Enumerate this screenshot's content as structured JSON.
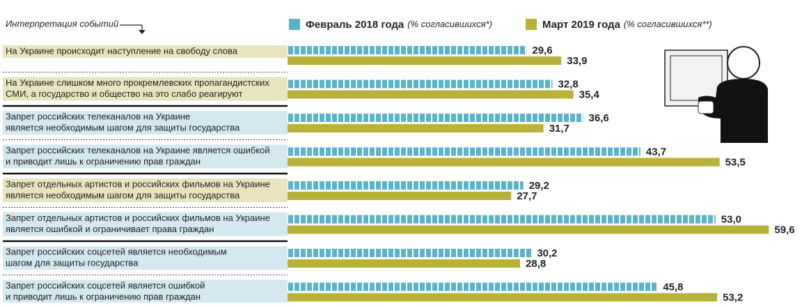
{
  "chart_data": {
    "type": "hbar",
    "header_label": "Интерпретация событий",
    "categories": [
      [
        "На Украине происходит наступление на свободу слова"
      ],
      [
        "На Украине слишком много прокремлевских пропагандистских",
        "СМИ, а государство и общество на это слабо реагируют"
      ],
      [
        "Запрет российских телеканалов на Украине",
        "является необходимым шагом для защиты государства"
      ],
      [
        "Запрет российских телеканалов на Украине является ошибкой",
        "и приводит лишь к ограничению прав граждан"
      ],
      [
        "Запрет отдельных артистов и российских фильмов на Украине",
        "является необходимым шагом для защиты государства"
      ],
      [
        "Запрет отдельных артистов и российских фильмов на Украине",
        "является ошибкой и ограничивает права граждан"
      ],
      [
        "Запрет российских соцсетей является необходимым",
        "шагом для защиты государства"
      ],
      [
        "Запрет российских соцсетей является ошибкой",
        "и приводит лишь к ограничению прав граждан"
      ]
    ],
    "series": [
      {
        "name": "Февраль 2018 года",
        "legend_note": "(% согласившихся*)",
        "color": "#5ab3c9",
        "values": [
          29.6,
          32.8,
          36.6,
          43.7,
          29.2,
          53.0,
          30.2,
          45.8
        ],
        "value_labels": [
          "29,6",
          "32,8",
          "36,6",
          "43,7",
          "29,2",
          "53,0",
          "30,2",
          "45,8"
        ]
      },
      {
        "name": "Март 2019 года",
        "legend_note": "(% согласившихся**)",
        "color": "#b9b23a",
        "values": [
          33.9,
          35.4,
          31.7,
          53.5,
          27.7,
          59.6,
          28.8,
          53.2
        ],
        "value_labels": [
          "33,9",
          "35,4",
          "31,7",
          "53,5",
          "27,7",
          "59,6",
          "28,8",
          "53,2"
        ]
      }
    ]
  }
}
